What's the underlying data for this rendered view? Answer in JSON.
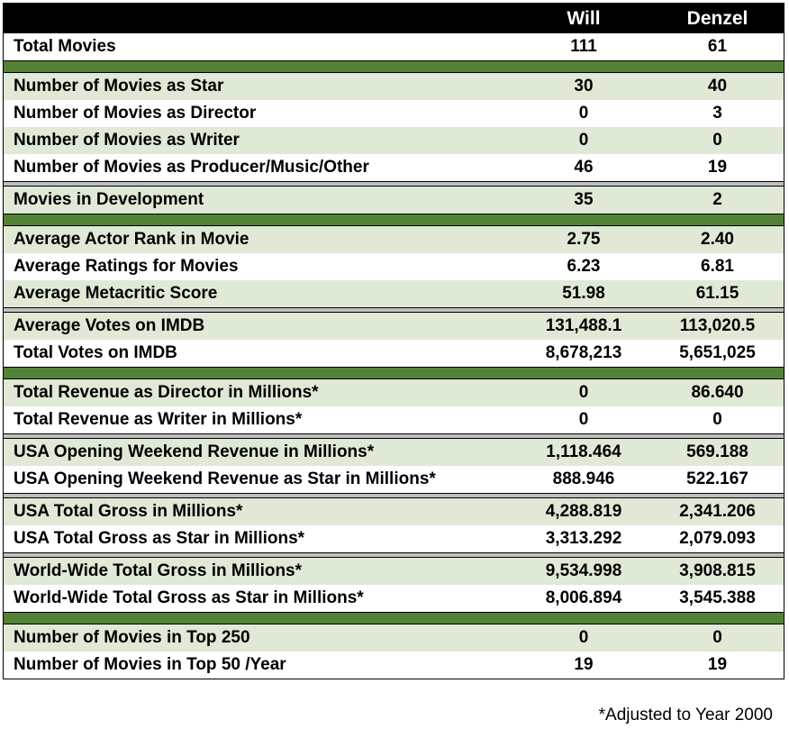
{
  "header": {
    "col1": "Will",
    "col2": "Denzel"
  },
  "sections": [
    {
      "sep": "none",
      "rows": [
        {
          "label": "Total Movies",
          "will": "111",
          "denzel": "61"
        }
      ]
    },
    {
      "sep": "green",
      "rows": [
        {
          "label": "Number of Movies as Star",
          "will": "30",
          "denzel": "40"
        },
        {
          "label": "Number of Movies as Director",
          "will": "0",
          "denzel": "3"
        },
        {
          "label": "Number of Movies as Writer",
          "will": "0",
          "denzel": "0"
        },
        {
          "label": "Number of Movies as Producer/Music/Other",
          "will": "46",
          "denzel": "19"
        }
      ]
    },
    {
      "sep": "gray",
      "rows": [
        {
          "label": "Movies in Development",
          "will": "35",
          "denzel": "2"
        }
      ]
    },
    {
      "sep": "green",
      "rows": [
        {
          "label": "Average Actor Rank in Movie",
          "will": "2.75",
          "denzel": "2.40"
        },
        {
          "label": "Average Ratings for Movies",
          "will": "6.23",
          "denzel": "6.81"
        },
        {
          "label": "Average Metacritic Score",
          "will": "51.98",
          "denzel": "61.15"
        }
      ]
    },
    {
      "sep": "gray",
      "rows": [
        {
          "label": "Average Votes on IMDB",
          "will": "131,488.1",
          "denzel": "113,020.5"
        },
        {
          "label": "Total Votes on IMDB",
          "will": "8,678,213",
          "denzel": "5,651,025"
        }
      ]
    },
    {
      "sep": "green",
      "rows": [
        {
          "label": "Total Revenue as Director in Millions*",
          "will": "0",
          "denzel": "86.640"
        },
        {
          "label": "Total Revenue as Writer in Millions*",
          "will": "0",
          "denzel": "0"
        }
      ]
    },
    {
      "sep": "gray",
      "rows": [
        {
          "label": "USA Opening Weekend Revenue in Millions*",
          "will": "1,118.464",
          "denzel": "569.188"
        },
        {
          "label": "USA Opening Weekend Revenue as Star in Millions*",
          "will": "888.946",
          "denzel": "522.167"
        }
      ]
    },
    {
      "sep": "gray",
      "rows": [
        {
          "label": "USA Total Gross in Millions*",
          "will": "4,288.819",
          "denzel": "2,341.206"
        },
        {
          "label": "USA Total Gross as Star in Millions*",
          "will": "3,313.292",
          "denzel": "2,079.093"
        }
      ]
    },
    {
      "sep": "gray",
      "rows": [
        {
          "label": "World-Wide Total Gross in Millions*",
          "will": "9,534.998",
          "denzel": "3,908.815"
        },
        {
          "label": "World-Wide Total Gross as Star in Millions*",
          "will": "8,006.894",
          "denzel": "3,545.388"
        }
      ]
    },
    {
      "sep": "green",
      "rows": [
        {
          "label": "Number of Movies in Top 250",
          "will": "0",
          "denzel": "0"
        },
        {
          "label": "Number of Movies in Top 50 /Year",
          "will": "19",
          "denzel": "19"
        }
      ]
    }
  ],
  "footnote": "*Adjusted to Year 2000"
}
